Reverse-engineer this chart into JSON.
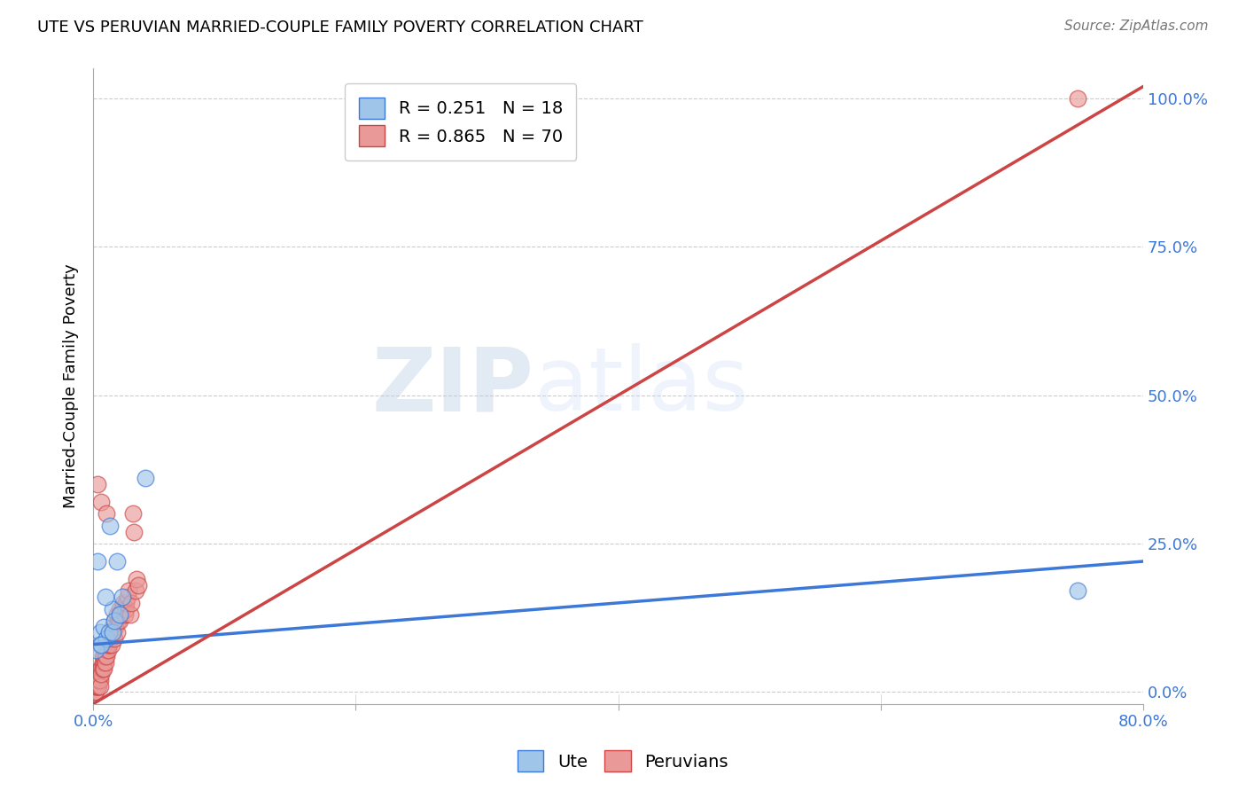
{
  "title": "UTE VS PERUVIAN MARRIED-COUPLE FAMILY POVERTY CORRELATION CHART",
  "source": "Source: ZipAtlas.com",
  "ylabel": "Married-Couple Family Poverty",
  "ute_R": "0.251",
  "ute_N": "18",
  "peruvian_R": "0.865",
  "peruvian_N": "70",
  "ute_color": "#9fc5e8",
  "peruvian_color": "#ea9999",
  "ute_line_color": "#3c78d8",
  "peruvian_line_color": "#cc4444",
  "watermark_zip": "ZIP",
  "watermark_atlas": "atlas",
  "legend_label_ute": "Ute",
  "legend_label_peruvian": "Peruvians",
  "ute_points_x": [
    0.005,
    0.005,
    0.008,
    0.01,
    0.012,
    0.013,
    0.015,
    0.015,
    0.016,
    0.018,
    0.02,
    0.022,
    0.04,
    0.75,
    0.002,
    0.003,
    0.006,
    0.009
  ],
  "ute_points_y": [
    0.1,
    0.08,
    0.11,
    0.09,
    0.1,
    0.28,
    0.14,
    0.1,
    0.12,
    0.22,
    0.13,
    0.16,
    0.36,
    0.17,
    0.07,
    0.22,
    0.08,
    0.16
  ],
  "peruvian_points_x": [
    0.001,
    0.001,
    0.001,
    0.001,
    0.001,
    0.002,
    0.002,
    0.002,
    0.002,
    0.002,
    0.003,
    0.003,
    0.003,
    0.003,
    0.004,
    0.004,
    0.004,
    0.004,
    0.005,
    0.005,
    0.005,
    0.005,
    0.006,
    0.006,
    0.007,
    0.007,
    0.007,
    0.008,
    0.008,
    0.008,
    0.009,
    0.009,
    0.01,
    0.01,
    0.011,
    0.011,
    0.012,
    0.012,
    0.013,
    0.014,
    0.014,
    0.015,
    0.015,
    0.016,
    0.016,
    0.017,
    0.018,
    0.018,
    0.019,
    0.02,
    0.02,
    0.021,
    0.022,
    0.023,
    0.024,
    0.025,
    0.025,
    0.026,
    0.027,
    0.028,
    0.029,
    0.03,
    0.031,
    0.032,
    0.033,
    0.034,
    0.75,
    0.003,
    0.006,
    0.01
  ],
  "peruvian_points_y": [
    0.0,
    0.01,
    0.02,
    0.0,
    0.01,
    0.01,
    0.02,
    0.0,
    0.01,
    0.02,
    0.01,
    0.02,
    0.01,
    0.03,
    0.02,
    0.03,
    0.01,
    0.02,
    0.03,
    0.04,
    0.02,
    0.01,
    0.04,
    0.03,
    0.05,
    0.04,
    0.06,
    0.05,
    0.04,
    0.06,
    0.06,
    0.05,
    0.07,
    0.06,
    0.07,
    0.08,
    0.08,
    0.09,
    0.09,
    0.1,
    0.08,
    0.1,
    0.11,
    0.12,
    0.09,
    0.11,
    0.13,
    0.1,
    0.12,
    0.14,
    0.12,
    0.13,
    0.14,
    0.15,
    0.13,
    0.14,
    0.15,
    0.16,
    0.17,
    0.13,
    0.15,
    0.3,
    0.27,
    0.17,
    0.19,
    0.18,
    1.0,
    0.35,
    0.32,
    0.3
  ],
  "ute_line_x": [
    0.0,
    0.8
  ],
  "ute_line_y": [
    0.08,
    0.22
  ],
  "peruvian_line_x": [
    0.0,
    0.8
  ],
  "peruvian_line_y": [
    -0.02,
    1.02
  ],
  "xlim": [
    0.0,
    0.8
  ],
  "ylim": [
    -0.02,
    1.05
  ],
  "yticks": [
    0.0,
    0.25,
    0.5,
    0.75,
    1.0
  ],
  "xticks": [
    0.0,
    0.2,
    0.4,
    0.6,
    0.8
  ],
  "background_color": "#ffffff",
  "grid_color": "#cccccc",
  "title_fontsize": 13,
  "axis_label_fontsize": 13,
  "tick_fontsize": 13,
  "legend_fontsize": 14
}
